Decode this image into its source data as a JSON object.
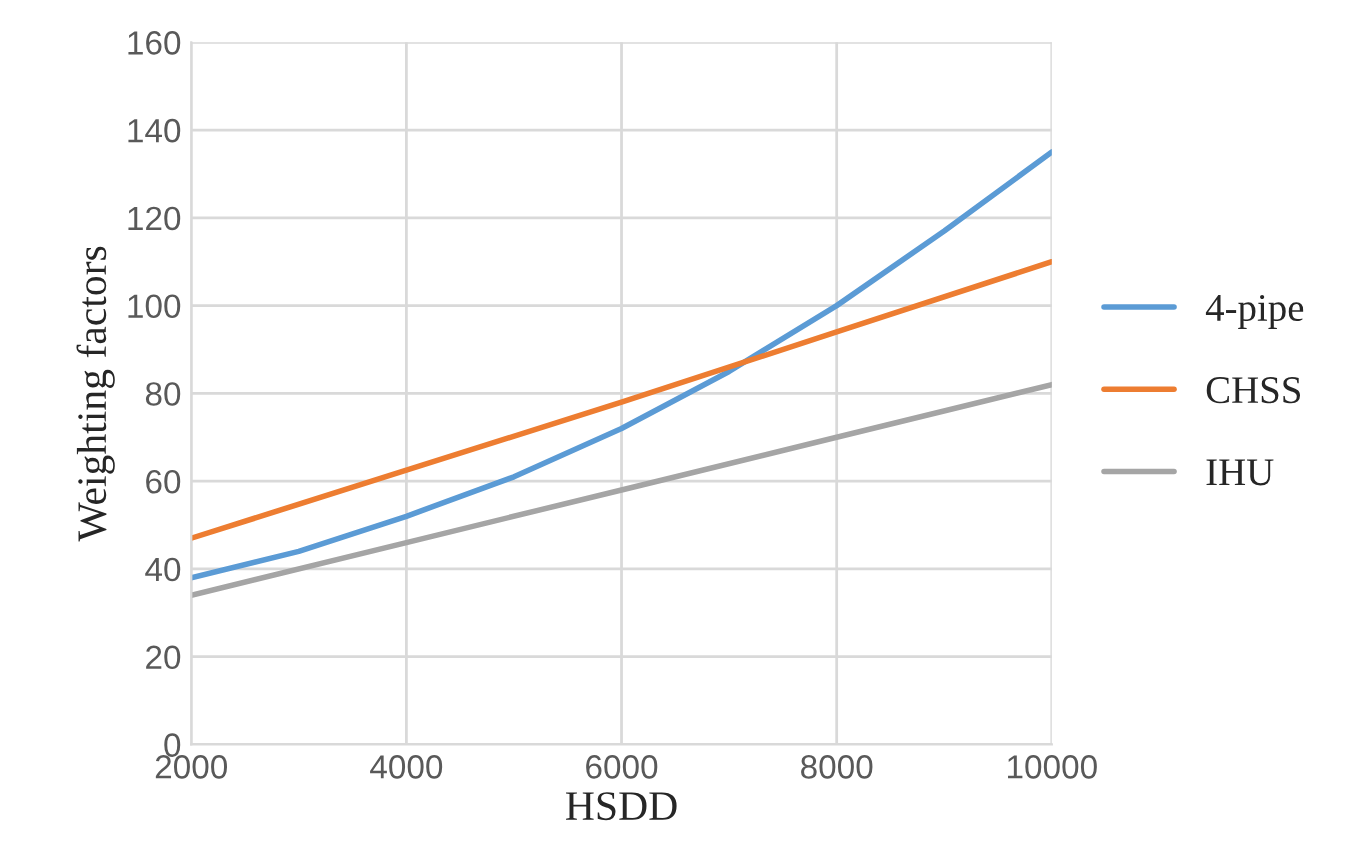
{
  "chart_data": {
    "type": "line",
    "xlabel": "HSDD",
    "ylabel": "Weighting factors",
    "series": [
      {
        "name": "4-pipe",
        "color": "#5b9bd5",
        "x": [
          2000,
          3000,
          4000,
          5000,
          6000,
          7000,
          8000,
          9000,
          10000
        ],
        "values": [
          38,
          44,
          52,
          61,
          72,
          85,
          100,
          117,
          135
        ]
      },
      {
        "name": "CHSS",
        "color": "#ed7d31",
        "x": [
          2000,
          4000,
          6000,
          8000,
          10000
        ],
        "values": [
          47,
          62.5,
          78,
          94,
          110
        ]
      },
      {
        "name": "IHU",
        "color": "#a5a5a5",
        "x": [
          2000,
          4000,
          6000,
          8000,
          10000
        ],
        "values": [
          34,
          46,
          58,
          70,
          82
        ]
      }
    ],
    "xlim": [
      2000,
      10000
    ],
    "xticks": [
      2000,
      4000,
      6000,
      8000,
      10000
    ],
    "ylim": [
      0,
      160
    ],
    "yticks": [
      0,
      20,
      40,
      60,
      80,
      100,
      120,
      140,
      160
    ],
    "grid": true,
    "legend": "right",
    "marker": "none",
    "line_style": "solid"
  }
}
